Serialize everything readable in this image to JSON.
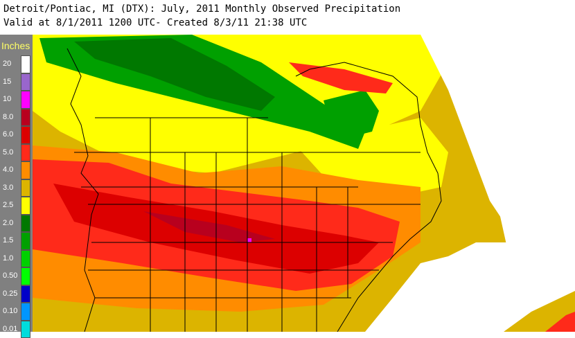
{
  "header": {
    "title_line1": "Detroit/Pontiac, MI (DTX): July, 2011 Monthly Observed Precipitation",
    "title_line2": "Valid at 8/1/2011 1200 UTC- Created 8/3/11 21:38 UTC"
  },
  "legend": {
    "title": "Inches",
    "items": [
      {
        "label": "20",
        "color": "#ffffff"
      },
      {
        "label": "15",
        "color": "#9966cc"
      },
      {
        "label": "10",
        "color": "#ff00ff"
      },
      {
        "label": "8.0",
        "color": "#b8001e"
      },
      {
        "label": "6.0",
        "color": "#dc0000"
      },
      {
        "label": "5.0",
        "color": "#ff2a1a"
      },
      {
        "label": "4.0",
        "color": "#ff8c00"
      },
      {
        "label": "3.0",
        "color": "#dcb400"
      },
      {
        "label": "2.5",
        "color": "#ffff00"
      },
      {
        "label": "2.0",
        "color": "#007800"
      },
      {
        "label": "1.5",
        "color": "#00a000"
      },
      {
        "label": "1.0",
        "color": "#00d000"
      },
      {
        "label": "0.50",
        "color": "#00ff00"
      },
      {
        "label": "0.25",
        "color": "#0000c8"
      },
      {
        "label": "0.10",
        "color": "#0096ff"
      },
      {
        "label": "0.01",
        "color": "#00dcdc"
      }
    ]
  },
  "map": {
    "background": "#ffffff",
    "boundary_color": "#000000"
  }
}
